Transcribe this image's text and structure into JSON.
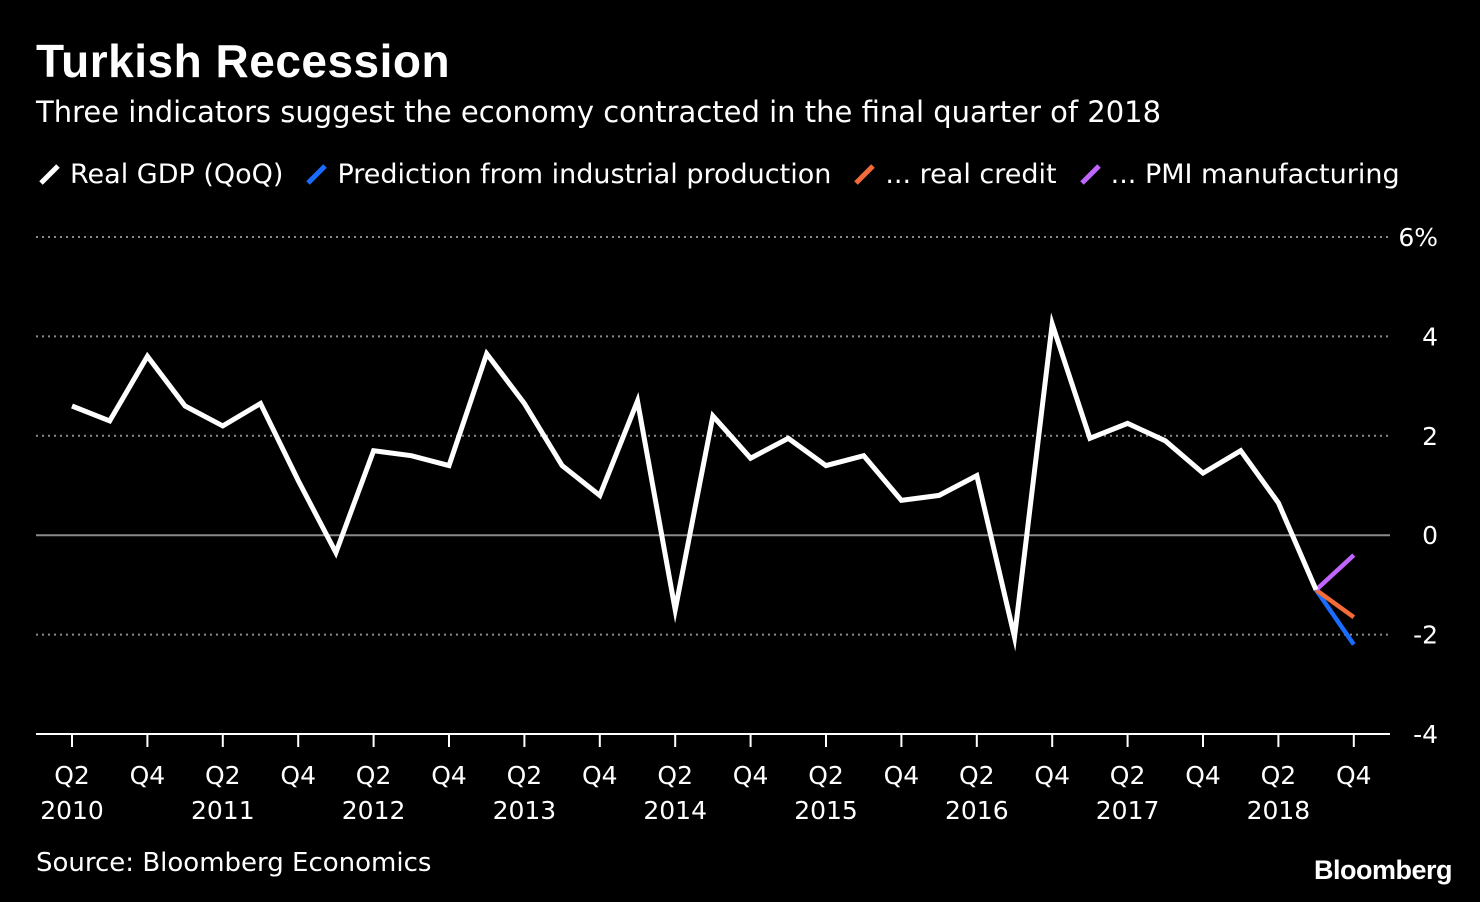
{
  "title": "Turkish Recession",
  "subtitle": "Three indicators suggest the economy contracted in the final quarter of 2018",
  "legend": [
    {
      "label": "Real GDP (QoQ)",
      "color": "#ffffff"
    },
    {
      "label": "Prediction from industrial production",
      "color": "#1a6cff"
    },
    {
      "label": "... real credit",
      "color": "#f26b38"
    },
    {
      "label": "... PMI manufacturing",
      "color": "#c066ff"
    }
  ],
  "source": "Source: Bloomberg Economics",
  "brand": "Bloomberg",
  "chart_data": {
    "type": "line",
    "title": "Turkish Recession",
    "subtitle": "Three indicators suggest the economy contracted in the final quarter of 2018",
    "ylim": [
      -4,
      6
    ],
    "y_ticks": [
      6,
      4,
      2,
      0,
      -2,
      -4
    ],
    "y_tick_labels": [
      "6%",
      "4",
      "2",
      "0",
      "-2",
      "-4"
    ],
    "grid": true,
    "legend_position": "top",
    "x_tick_quarters": [
      "Q2",
      "Q4",
      "Q2",
      "Q4",
      "Q2",
      "Q4",
      "Q2",
      "Q4",
      "Q2",
      "Q4",
      "Q2",
      "Q4",
      "Q2",
      "Q4",
      "Q2",
      "Q4",
      "Q2",
      "Q4"
    ],
    "x_tick_years": [
      "2010",
      "",
      "2011",
      "",
      "2012",
      "",
      "2013",
      "",
      "2014",
      "",
      "2015",
      "",
      "2016",
      "",
      "2017",
      "",
      "2018",
      ""
    ],
    "x": [
      "2010 Q2",
      "2010 Q3",
      "2010 Q4",
      "2011 Q1",
      "2011 Q2",
      "2011 Q3",
      "2011 Q4",
      "2012 Q1",
      "2012 Q2",
      "2012 Q3",
      "2012 Q4",
      "2013 Q1",
      "2013 Q2",
      "2013 Q3",
      "2013 Q4",
      "2014 Q1",
      "2014 Q2",
      "2014 Q3",
      "2014 Q4",
      "2015 Q1",
      "2015 Q2",
      "2015 Q3",
      "2015 Q4",
      "2016 Q1",
      "2016 Q2",
      "2016 Q3",
      "2016 Q4",
      "2017 Q1",
      "2017 Q2",
      "2017 Q3",
      "2017 Q4",
      "2018 Q1",
      "2018 Q2",
      "2018 Q3",
      "2018 Q4"
    ],
    "series": [
      {
        "name": "Real GDP (QoQ)",
        "color": "#ffffff",
        "values": [
          2.6,
          2.3,
          3.6,
          2.6,
          2.2,
          2.65,
          1.1,
          -0.35,
          1.7,
          1.6,
          1.4,
          3.65,
          2.65,
          1.4,
          0.8,
          2.7,
          -1.5,
          2.4,
          1.55,
          1.95,
          1.4,
          1.6,
          0.7,
          0.8,
          1.2,
          -2.05,
          4.25,
          1.95,
          2.25,
          1.9,
          1.25,
          1.7,
          0.65,
          -1.1,
          null
        ]
      },
      {
        "name": "Prediction from industrial production",
        "color": "#1a6cff",
        "values": [
          null,
          null,
          null,
          null,
          null,
          null,
          null,
          null,
          null,
          null,
          null,
          null,
          null,
          null,
          null,
          null,
          null,
          null,
          null,
          null,
          null,
          null,
          null,
          null,
          null,
          null,
          null,
          null,
          null,
          null,
          null,
          null,
          null,
          -1.1,
          -2.2
        ]
      },
      {
        "name": "... real credit",
        "color": "#f26b38",
        "values": [
          null,
          null,
          null,
          null,
          null,
          null,
          null,
          null,
          null,
          null,
          null,
          null,
          null,
          null,
          null,
          null,
          null,
          null,
          null,
          null,
          null,
          null,
          null,
          null,
          null,
          null,
          null,
          null,
          null,
          null,
          null,
          null,
          null,
          -1.1,
          -1.65
        ]
      },
      {
        "name": "... PMI manufacturing",
        "color": "#c066ff",
        "values": [
          null,
          null,
          null,
          null,
          null,
          null,
          null,
          null,
          null,
          null,
          null,
          null,
          null,
          null,
          null,
          null,
          null,
          null,
          null,
          null,
          null,
          null,
          null,
          null,
          null,
          null,
          null,
          null,
          null,
          null,
          null,
          null,
          null,
          -1.1,
          -0.4
        ]
      }
    ]
  }
}
